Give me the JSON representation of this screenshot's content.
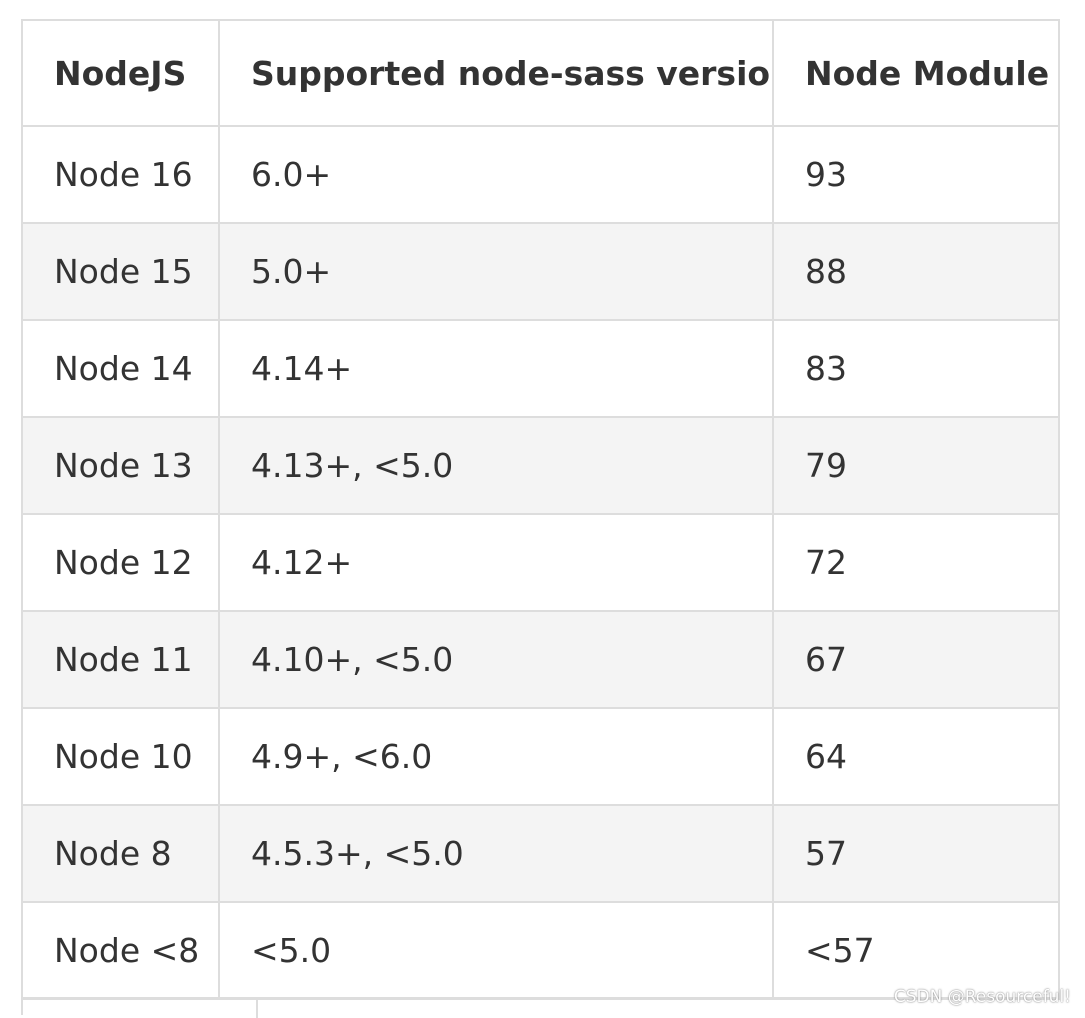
{
  "table": {
    "headers": [
      "NodeJS",
      "Supported node-sass version",
      "Node Module"
    ],
    "rows": [
      [
        "Node 16",
        "6.0+",
        "93"
      ],
      [
        "Node 15",
        "5.0+",
        "88"
      ],
      [
        "Node 14",
        "4.14+",
        "83"
      ],
      [
        "Node 13",
        "4.13+, <5.0",
        "79"
      ],
      [
        "Node 12",
        "4.12+",
        "72"
      ],
      [
        "Node 11",
        "4.10+, <5.0",
        "67"
      ],
      [
        "Node 10",
        "4.9+, <6.0",
        "64"
      ],
      [
        "Node 8",
        "4.5.3+, <5.0",
        "57"
      ],
      [
        "Node <8",
        "<5.0",
        "<57"
      ]
    ]
  },
  "watermark": "CSDN @Resourceful!",
  "colors": {
    "border": "#dddddd",
    "stripe": "#f4f4f4",
    "text": "#333333"
  }
}
